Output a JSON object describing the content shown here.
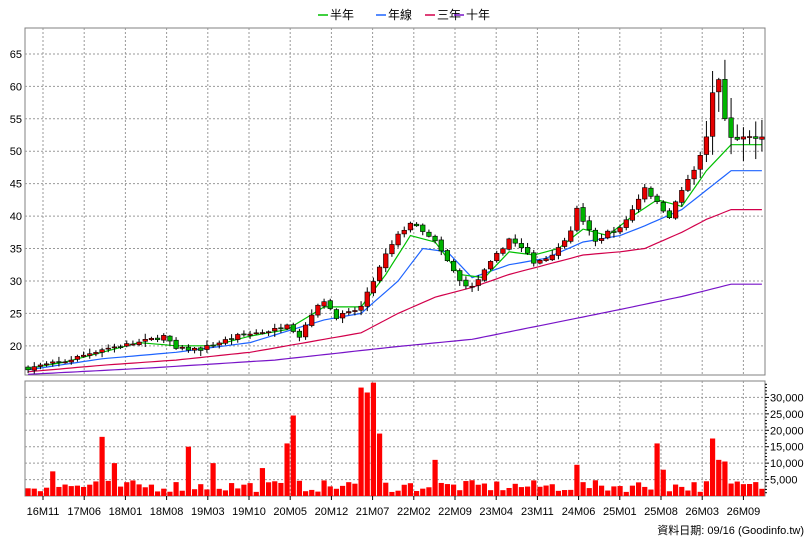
{
  "chart_data": {
    "type": "candlestick-with-volume",
    "legend": [
      {
        "name": "半年",
        "color": "#00c000"
      },
      {
        "name": "年線",
        "color": "#1e64ff"
      },
      {
        "name": "三年",
        "color": "#d2004b"
      },
      {
        "name": "十年",
        "color": "#7814c8"
      }
    ],
    "price_axis": {
      "ticks": [
        20,
        25,
        30,
        35,
        40,
        45,
        50,
        55,
        60,
        65
      ],
      "ylim": [
        15.5,
        69
      ]
    },
    "volume_axis": {
      "ticks": [
        5000,
        10000,
        15000,
        20000,
        25000,
        30000
      ],
      "tick_labels": [
        "5,000",
        "10,000",
        "15,000",
        "20,000",
        "25,000",
        "30,000"
      ],
      "ylim": [
        0,
        35000
      ]
    },
    "x_tick_labels": [
      "16M11",
      "17M06",
      "18M01",
      "18M08",
      "19M03",
      "19M10",
      "20M05",
      "20M12",
      "21M07",
      "22M02",
      "22M09",
      "23M04",
      "23M11",
      "24M06",
      "25M01",
      "25M08",
      "26M03",
      "26M09"
    ],
    "bar_count": 120,
    "price_anchors": [
      [
        0,
        16.6
      ],
      [
        6,
        17.6
      ],
      [
        12,
        19.5
      ],
      [
        18,
        20.5
      ],
      [
        22,
        21.5
      ],
      [
        24,
        19.5
      ],
      [
        28,
        19.5
      ],
      [
        34,
        21.5
      ],
      [
        40,
        22.5
      ],
      [
        42,
        23.5
      ],
      [
        44,
        21.5
      ],
      [
        46,
        25.0
      ],
      [
        48,
        27.0
      ],
      [
        50,
        24.5
      ],
      [
        52,
        25.0
      ],
      [
        54,
        26.0
      ],
      [
        56,
        30.0
      ],
      [
        58,
        34.0
      ],
      [
        60,
        37.0
      ],
      [
        62,
        39.0
      ],
      [
        66,
        36.0
      ],
      [
        70,
        30.0
      ],
      [
        72,
        29.0
      ],
      [
        74,
        31.5
      ],
      [
        76,
        34.0
      ],
      [
        78,
        36.5
      ],
      [
        80,
        35.0
      ],
      [
        82,
        33.0
      ],
      [
        84,
        33.5
      ],
      [
        86,
        35.0
      ],
      [
        88,
        38.0
      ],
      [
        89,
        41.0
      ],
      [
        92,
        36.0
      ],
      [
        94,
        37.5
      ],
      [
        96,
        38.0
      ],
      [
        98,
        41.0
      ],
      [
        100,
        44.5
      ],
      [
        102,
        42.0
      ],
      [
        104,
        40.0
      ],
      [
        106,
        44.0
      ],
      [
        108,
        47.0
      ],
      [
        110,
        52.0
      ],
      [
        111,
        59.0
      ],
      [
        112,
        61.0
      ],
      [
        113,
        55.0
      ],
      [
        114,
        52.0
      ]
    ],
    "ma_half_anchors": [
      [
        0,
        16.5
      ],
      [
        6,
        17.5
      ],
      [
        12,
        19.0
      ],
      [
        18,
        20.5
      ],
      [
        24,
        20.0
      ],
      [
        30,
        20.0
      ],
      [
        36,
        21.5
      ],
      [
        42,
        22.5
      ],
      [
        48,
        26.0
      ],
      [
        54,
        26.0
      ],
      [
        58,
        31.0
      ],
      [
        62,
        37.0
      ],
      [
        66,
        36.0
      ],
      [
        70,
        31.0
      ],
      [
        74,
        30.5
      ],
      [
        78,
        34.5
      ],
      [
        82,
        34.0
      ],
      [
        86,
        35.0
      ],
      [
        90,
        38.0
      ],
      [
        94,
        37.0
      ],
      [
        98,
        40.0
      ],
      [
        102,
        42.5
      ],
      [
        106,
        41.5
      ],
      [
        110,
        47.0
      ],
      [
        114,
        51.0
      ]
    ],
    "ma_year_anchors": [
      [
        0,
        16.3
      ],
      [
        12,
        18.0
      ],
      [
        24,
        19.0
      ],
      [
        36,
        20.5
      ],
      [
        48,
        24.0
      ],
      [
        54,
        25.0
      ],
      [
        60,
        30.0
      ],
      [
        64,
        35.0
      ],
      [
        68,
        34.5
      ],
      [
        72,
        30.5
      ],
      [
        78,
        32.5
      ],
      [
        84,
        33.5
      ],
      [
        90,
        36.0
      ],
      [
        96,
        37.0
      ],
      [
        100,
        38.5
      ],
      [
        106,
        41.0
      ],
      [
        110,
        44.0
      ],
      [
        114,
        47.0
      ]
    ],
    "ma_3y_anchors": [
      [
        0,
        16.0
      ],
      [
        12,
        17.0
      ],
      [
        24,
        17.8
      ],
      [
        36,
        19.0
      ],
      [
        48,
        21.0
      ],
      [
        54,
        22.0
      ],
      [
        60,
        25.0
      ],
      [
        66,
        27.5
      ],
      [
        72,
        29.0
      ],
      [
        78,
        31.0
      ],
      [
        84,
        32.5
      ],
      [
        90,
        34.0
      ],
      [
        96,
        34.5
      ],
      [
        100,
        35.0
      ],
      [
        106,
        37.5
      ],
      [
        110,
        39.5
      ],
      [
        114,
        41.0
      ]
    ],
    "ma_10y_anchors": [
      [
        0,
        15.6
      ],
      [
        20,
        16.6
      ],
      [
        40,
        17.8
      ],
      [
        60,
        19.9
      ],
      [
        72,
        21.0
      ],
      [
        84,
        23.3
      ],
      [
        96,
        25.6
      ],
      [
        106,
        27.6
      ],
      [
        114,
        29.5
      ]
    ],
    "volume_spikes": [
      [
        4,
        7500
      ],
      [
        12,
        18000
      ],
      [
        14,
        10000
      ],
      [
        26,
        15000
      ],
      [
        30,
        10000
      ],
      [
        38,
        8500
      ],
      [
        42,
        16000
      ],
      [
        43,
        24500
      ],
      [
        54,
        33000
      ],
      [
        55,
        31500
      ],
      [
        56,
        34500
      ],
      [
        57,
        19000
      ],
      [
        66,
        11000
      ],
      [
        89,
        9500
      ],
      [
        102,
        16000
      ],
      [
        103,
        8000
      ],
      [
        111,
        17500
      ],
      [
        112,
        11000
      ],
      [
        113,
        10500
      ]
    ],
    "footer_label": "資料日期: 09/16 (Goodinfo.tw)"
  }
}
